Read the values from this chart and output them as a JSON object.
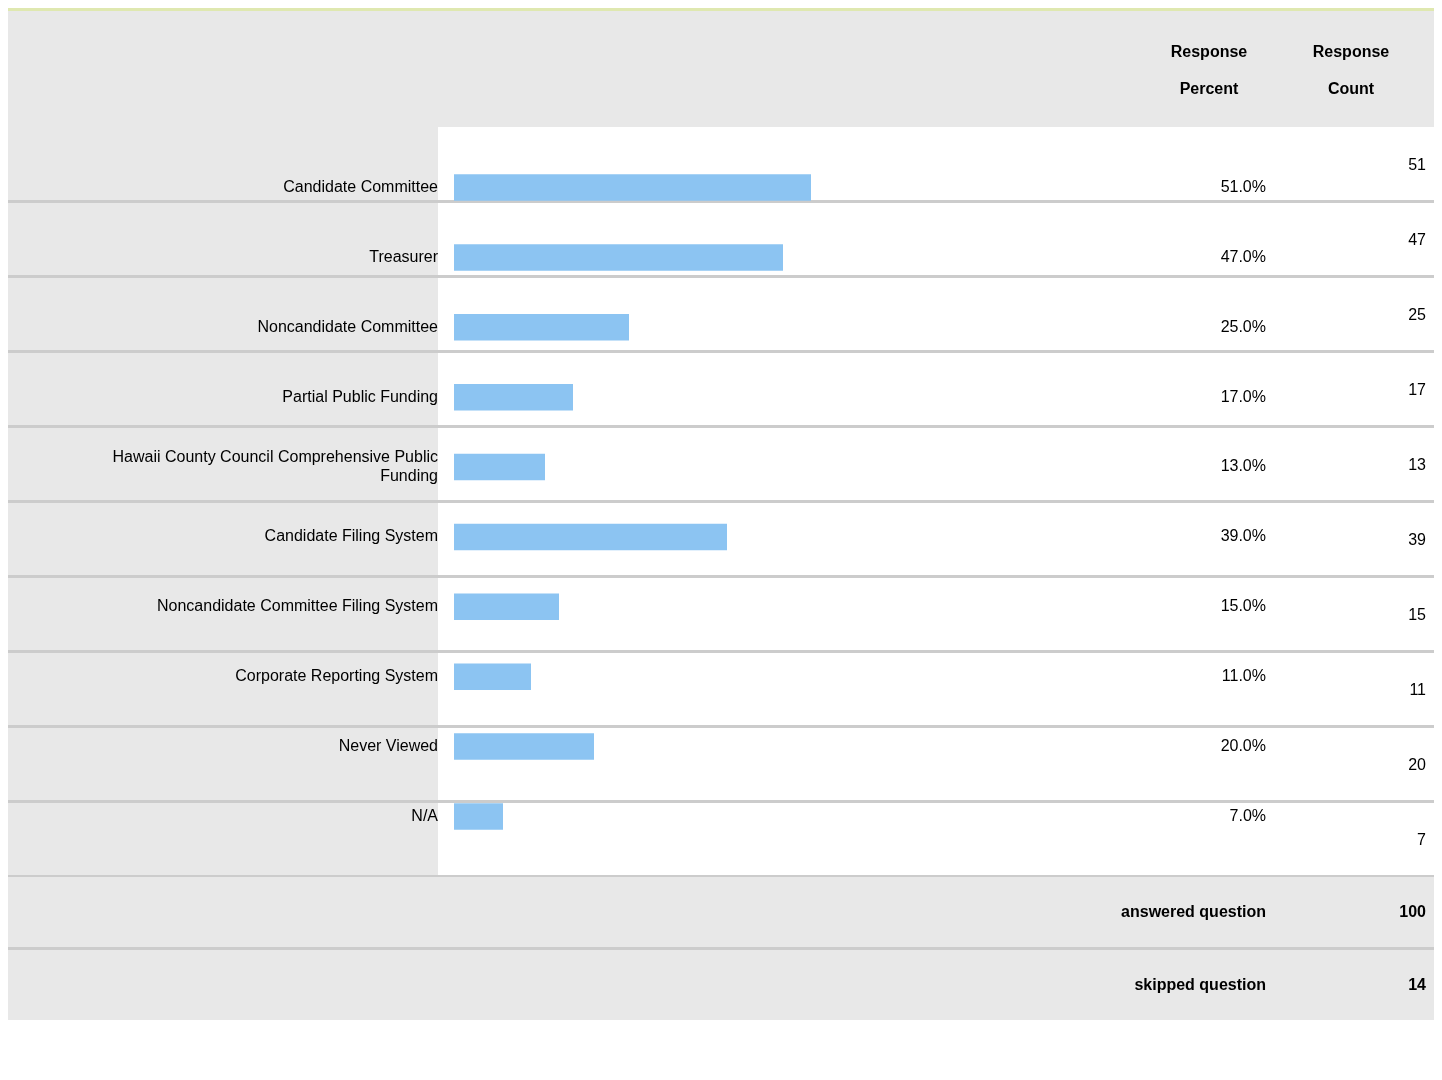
{
  "chart_data": {
    "type": "bar",
    "orientation": "horizontal",
    "categories": [
      "Candidate Committee",
      "Treasurer",
      "Noncandidate Committee",
      "Partial Public Funding",
      "Hawaii County Council Comprehensive Public Funding",
      "Candidate Filing System",
      "Noncandidate Committee Filing System",
      "Corporate Reporting System",
      "Never Viewed",
      "N/A"
    ],
    "values": [
      51,
      47,
      25,
      17,
      13,
      39,
      15,
      11,
      20,
      7
    ],
    "value_labels": [
      "51.0%",
      "47.0%",
      "25.0%",
      "17.0%",
      "13.0%",
      "39.0%",
      "15.0%",
      "11.0%",
      "20.0%",
      "7.0%"
    ],
    "color": "#8cc4f2",
    "tick_labels": "y",
    "grid": false,
    "legend": false,
    "annotations": [
      "Response Percent",
      "Response Count",
      "51",
      "47",
      "25",
      "17",
      "13",
      "39",
      "15",
      "11",
      "20",
      "7",
      "answered question",
      "100",
      "skipped question",
      "14"
    ]
  }
}
